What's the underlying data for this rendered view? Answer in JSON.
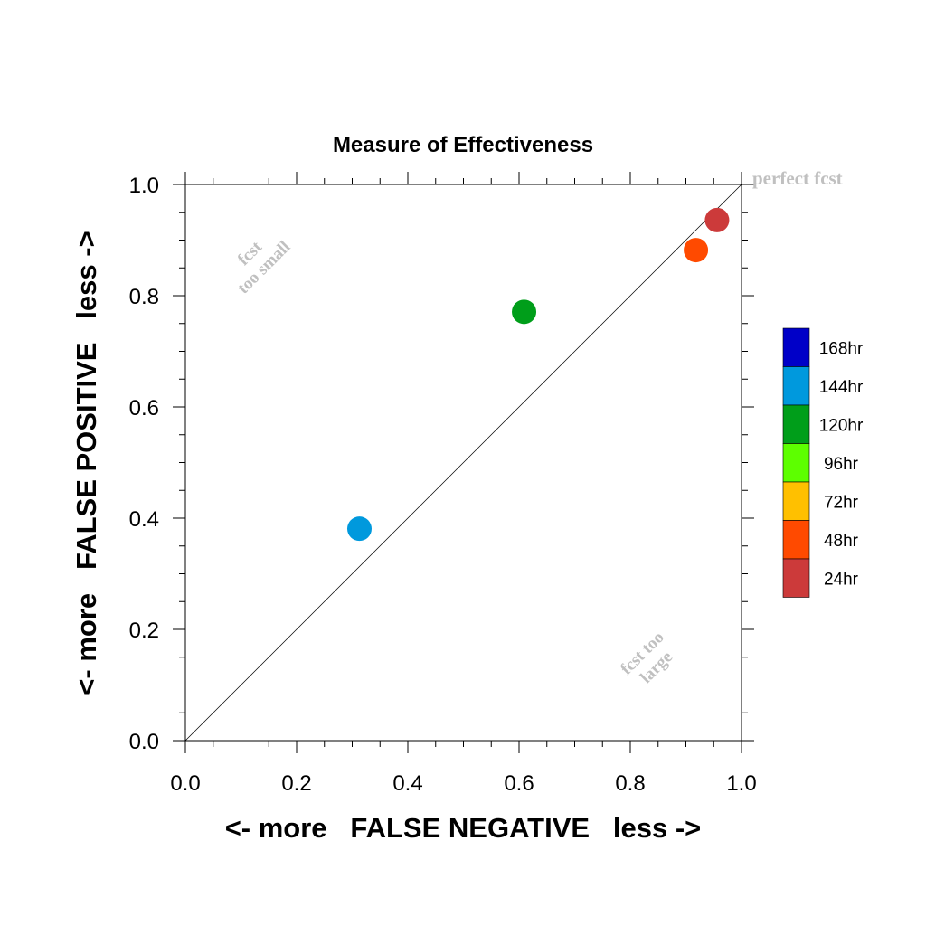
{
  "chart_data": {
    "type": "scatter",
    "title": "Measure of Effectiveness",
    "xlabel": "<- more   FALSE NEGATIVE   less ->",
    "ylabel": "<- more   FALSE POSITIVE   less ->",
    "xlim": [
      0.0,
      1.0
    ],
    "ylim": [
      0.0,
      1.0
    ],
    "xticks": [
      "0.0",
      "0.2",
      "0.4",
      "0.6",
      "0.8",
      "1.0"
    ],
    "yticks": [
      "0.0",
      "0.2",
      "0.4",
      "0.6",
      "0.8",
      "1.0"
    ],
    "grid": false,
    "diagonal": true,
    "annotations": {
      "perfect": "perfect fcst",
      "too_small_1": "fcst",
      "too_small_2": "too small",
      "too_large_1": "fcst too",
      "too_large_2": "large"
    },
    "points": [
      {
        "name": "144hr",
        "x": 0.313,
        "y": 0.381,
        "color": "#0099dd"
      },
      {
        "name": "120hr",
        "x": 0.609,
        "y": 0.771,
        "color": "#009e1a"
      },
      {
        "name": "48hr",
        "x": 0.918,
        "y": 0.882,
        "color": "#ff4a00"
      },
      {
        "name": "24hr",
        "x": 0.956,
        "y": 0.936,
        "color": "#cc3a3a"
      }
    ],
    "legend": {
      "placement": "right",
      "entries": [
        {
          "label": "168hr",
          "color": "#0000c8"
        },
        {
          "label": "144hr",
          "color": "#0099dd"
        },
        {
          "label": "120hr",
          "color": "#009e1a"
        },
        {
          "label": "96hr",
          "color": "#5dff00"
        },
        {
          "label": "72hr",
          "color": "#ffc000"
        },
        {
          "label": "48hr",
          "color": "#ff4a00"
        },
        {
          "label": "24hr",
          "color": "#cc3a3a"
        }
      ]
    }
  }
}
